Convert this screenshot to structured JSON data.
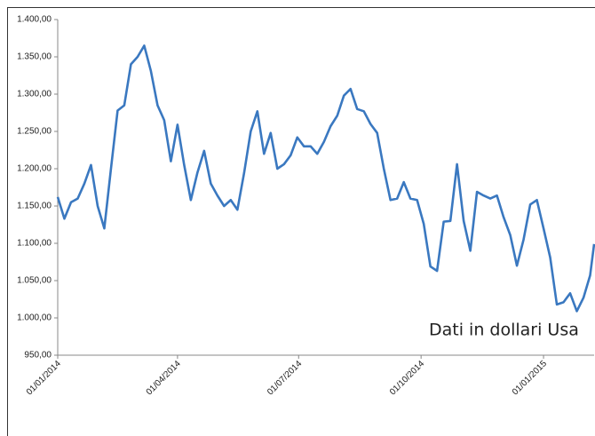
{
  "chart_data": {
    "type": "line",
    "annotation": "Dati in dollari Usa",
    "x": [
      "01/01/2014",
      "06/01/2014",
      "11/01/2014",
      "16/01/2014",
      "21/01/2014",
      "26/01/2014",
      "31/01/2014",
      "05/02/2014",
      "10/02/2014",
      "15/02/2014",
      "20/02/2014",
      "25/02/2014",
      "02/03/2014",
      "07/03/2014",
      "12/03/2014",
      "17/03/2014",
      "22/03/2014",
      "27/03/2014",
      "01/04/2014",
      "06/04/2014",
      "11/04/2014",
      "16/04/2014",
      "21/04/2014",
      "26/04/2014",
      "01/05/2014",
      "06/05/2014",
      "11/05/2014",
      "16/05/2014",
      "21/05/2014",
      "26/05/2014",
      "31/05/2014",
      "05/06/2014",
      "10/06/2014",
      "15/06/2014",
      "20/06/2014",
      "25/06/2014",
      "30/06/2014",
      "05/07/2014",
      "10/07/2014",
      "15/07/2014",
      "20/07/2014",
      "25/07/2014",
      "30/07/2014",
      "04/08/2014",
      "09/08/2014",
      "14/08/2014",
      "19/08/2014",
      "24/08/2014",
      "29/08/2014",
      "03/09/2014",
      "08/09/2014",
      "13/09/2014",
      "18/09/2014",
      "23/09/2014",
      "28/09/2014",
      "03/10/2014",
      "08/10/2014",
      "13/10/2014",
      "18/10/2014",
      "23/10/2014",
      "28/10/2014",
      "02/11/2014",
      "07/11/2014",
      "12/11/2014",
      "17/11/2014",
      "22/11/2014",
      "27/11/2014",
      "02/12/2014",
      "07/12/2014",
      "12/12/2014",
      "17/12/2014",
      "22/12/2014",
      "27/12/2014",
      "01/01/2015",
      "06/01/2015",
      "11/01/2015",
      "16/01/2015",
      "21/01/2015",
      "26/01/2015",
      "31/01/2015",
      "05/02/2015",
      "08/02/2015"
    ],
    "series": [
      {
        "color": "#3a78c0",
        "values": [
          1162,
          1133,
          1155,
          1160,
          1180,
          1205,
          1150,
          1120,
          1200,
          1278,
          1285,
          1340,
          1350,
          1365,
          1331,
          1285,
          1265,
          1210,
          1259,
          1205,
          1158,
          1195,
          1224,
          1180,
          1164,
          1150,
          1158,
          1145,
          1194,
          1250,
          1277,
          1220,
          1248,
          1200,
          1206,
          1218,
          1242,
          1230,
          1230,
          1220,
          1236,
          1257,
          1271,
          1298,
          1307,
          1280,
          1277,
          1260,
          1248,
          1200,
          1158,
          1160,
          1182,
          1160,
          1158,
          1126,
          1069,
          1063,
          1129,
          1130,
          1206,
          1130,
          1090,
          1169,
          1164,
          1160,
          1164,
          1135,
          1111,
          1070,
          1105,
          1152,
          1158,
          1120,
          1081,
          1018,
          1021,
          1033,
          1009,
          1027,
          1057,
          1099
        ]
      }
    ],
    "xlim": [
      "01/01/2014",
      "08/02/2015"
    ],
    "xticks": [
      "01/01/2014",
      "01/04/2014",
      "01/07/2014",
      "01/10/2014",
      "01/01/2015"
    ],
    "ylim": [
      950,
      1400
    ],
    "yticks": [
      {
        "value": 950,
        "label": "950,00"
      },
      {
        "value": 1000,
        "label": "1.000,00"
      },
      {
        "value": 1050,
        "label": "1.050,00"
      },
      {
        "value": 1100,
        "label": "1.100,00"
      },
      {
        "value": 1150,
        "label": "1.150,00"
      },
      {
        "value": 1200,
        "label": "1.200,00"
      },
      {
        "value": 1250,
        "label": "1.250,00"
      },
      {
        "value": 1300,
        "label": "1.300,00"
      },
      {
        "value": 1350,
        "label": "1.350,00"
      },
      {
        "value": 1400,
        "label": "1.400,00"
      }
    ],
    "grid": false
  }
}
